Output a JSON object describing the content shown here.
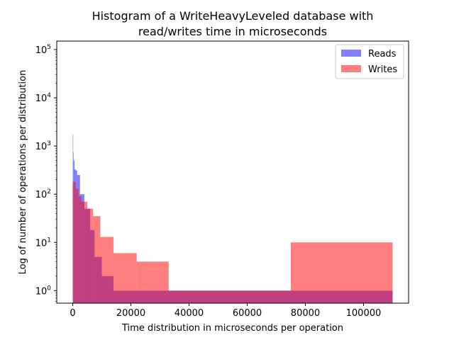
{
  "chart_data": {
    "type": "bar",
    "title_lines": [
      "Histogram of a WriteHeavyLeveled database with",
      "read/writes time in microseconds"
    ],
    "xlabel": "Time distribution in microseconds per operation",
    "ylabel": "Log of number of operations per distribution",
    "xlim": [
      -5500,
      115500
    ],
    "ylim": [
      0.55,
      150000
    ],
    "yscale": "log",
    "x_ticks": [
      0,
      20000,
      40000,
      60000,
      80000,
      100000
    ],
    "x_tick_labels": [
      "0",
      "20000",
      "40000",
      "60000",
      "80000",
      "100000"
    ],
    "y_ticks": [
      1,
      10,
      100,
      1000,
      10000,
      100000
    ],
    "y_tick_base": "10",
    "y_tick_exponents": [
      "0",
      "1",
      "2",
      "3",
      "4",
      "5"
    ],
    "legend": {
      "position": "top-right"
    },
    "series": [
      {
        "name": "Reads",
        "color": "#0000ff",
        "alpha": 0.5,
        "bins": [
          [
            0,
            150,
            1750
          ],
          [
            150,
            300,
            750
          ],
          [
            300,
            600,
            500
          ],
          [
            600,
            1000,
            330
          ],
          [
            1000,
            1500,
            310
          ],
          [
            1500,
            2500,
            250
          ],
          [
            2500,
            4000,
            100
          ],
          [
            4000,
            6000,
            50
          ],
          [
            6000,
            7500,
            18
          ],
          [
            7500,
            10000,
            5
          ],
          [
            10000,
            14000,
            2
          ],
          [
            14000,
            110000,
            1
          ]
        ]
      },
      {
        "name": "Writes",
        "color": "#ff0000",
        "alpha": 0.5,
        "bins": [
          [
            0,
            1000,
            180
          ],
          [
            1000,
            2000,
            130
          ],
          [
            2000,
            3000,
            90
          ],
          [
            3000,
            5000,
            70
          ],
          [
            5000,
            7000,
            50
          ],
          [
            7000,
            9500,
            35
          ],
          [
            9500,
            14000,
            13
          ],
          [
            14000,
            22000,
            6
          ],
          [
            22000,
            33000,
            4
          ],
          [
            33000,
            75000,
            1
          ],
          [
            75000,
            110000,
            10
          ]
        ]
      }
    ]
  }
}
